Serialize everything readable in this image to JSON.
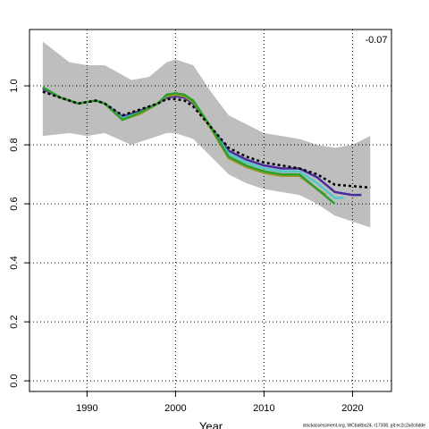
{
  "chart_data": {
    "type": "line",
    "annotation": "-0.07",
    "x_label": "Year",
    "footer": "stockassessment.org, WCbaltbs24, r17308, git:ec2c2a0c6dde",
    "xlim": [
      1983.5,
      2024.4
    ],
    "ylim": [
      -0.036,
      1.191
    ],
    "xticks": [
      1990,
      2000,
      2010,
      2020
    ],
    "yticks": [
      {
        "value": 0,
        "label": "0.0"
      },
      {
        "value": 0.2,
        "label": "0.2"
      },
      {
        "value": 0.4,
        "label": "0.4"
      },
      {
        "value": 0.6,
        "label": "0.6"
      },
      {
        "value": 0.8,
        "label": "0.8"
      },
      {
        "value": 1,
        "label": "1.0"
      }
    ],
    "grid": true,
    "band": {
      "color": "#bebebe",
      "x": [
        1985,
        1988,
        1990,
        1992,
        1995,
        1997,
        1999,
        2000,
        2002,
        2004,
        2006,
        2008,
        2010,
        2012,
        2014,
        2016,
        2018,
        2020,
        2022
      ],
      "upper": [
        1.15,
        1.08,
        1.07,
        1.07,
        1.02,
        1.03,
        1.08,
        1.09,
        1.07,
        0.98,
        0.9,
        0.87,
        0.84,
        0.83,
        0.82,
        0.8,
        0.79,
        0.8,
        0.83
      ],
      "lower": [
        0.83,
        0.84,
        0.83,
        0.84,
        0.8,
        0.82,
        0.84,
        0.84,
        0.82,
        0.76,
        0.7,
        0.67,
        0.65,
        0.64,
        0.63,
        0.6,
        0.56,
        0.54,
        0.52
      ]
    },
    "series": [
      {
        "color": "#4b2a9e",
        "x": [
          1985,
          1987,
          1989,
          1991,
          1992,
          1994,
          1996,
          1998,
          1999,
          2000,
          2001,
          2002,
          2004,
          2006,
          2008,
          2010,
          2012,
          2014,
          2016,
          2018,
          2020,
          2021
        ],
        "values": [
          0.99,
          0.96,
          0.94,
          0.95,
          0.94,
          0.895,
          0.915,
          0.94,
          0.96,
          0.965,
          0.96,
          0.94,
          0.86,
          0.78,
          0.75,
          0.73,
          0.72,
          0.72,
          0.69,
          0.64,
          0.63,
          0.63
        ]
      },
      {
        "color": "#4ec9c9",
        "x": [
          1985,
          1987,
          1989,
          1991,
          1992,
          1994,
          1996,
          1998,
          1999,
          2000,
          2001,
          2002,
          2004,
          2006,
          2008,
          2010,
          2012,
          2014,
          2016,
          2018,
          2019
        ],
        "values": [
          0.995,
          0.96,
          0.94,
          0.95,
          0.94,
          0.89,
          0.91,
          0.94,
          0.965,
          0.97,
          0.965,
          0.945,
          0.86,
          0.77,
          0.74,
          0.72,
          0.71,
          0.71,
          0.67,
          0.62,
          0.62
        ]
      },
      {
        "color": "#9a9a20",
        "x": [
          1985,
          1987,
          1989,
          1991,
          1992,
          1994,
          1996,
          1998,
          1999,
          2000,
          2001,
          2002,
          2004,
          2006,
          2008,
          2010,
          2012,
          2014,
          2016,
          2017
        ],
        "values": [
          0.995,
          0.96,
          0.94,
          0.95,
          0.94,
          0.885,
          0.905,
          0.94,
          0.965,
          0.97,
          0.965,
          0.945,
          0.855,
          0.755,
          0.725,
          0.705,
          0.695,
          0.695,
          0.65,
          0.63
        ]
      },
      {
        "color": "#2e9e2e",
        "x": [
          1985,
          1987,
          1989,
          1991,
          1992,
          1994,
          1996,
          1998,
          1999,
          2000,
          2001,
          2002,
          2004,
          2006,
          2008,
          2010,
          2012,
          2014,
          2016,
          2018
        ],
        "values": [
          0.995,
          0.96,
          0.94,
          0.95,
          0.94,
          0.885,
          0.91,
          0.94,
          0.97,
          0.975,
          0.97,
          0.95,
          0.86,
          0.76,
          0.73,
          0.71,
          0.7,
          0.7,
          0.65,
          0.6
        ]
      },
      {
        "color": "#000000",
        "dashed": true,
        "x": [
          1985,
          1987,
          1989,
          1991,
          1992,
          1994,
          1996,
          1998,
          1999,
          2000,
          2001,
          2002,
          2004,
          2006,
          2008,
          2010,
          2012,
          2014,
          2016,
          2018,
          2020,
          2022
        ],
        "values": [
          0.98,
          0.96,
          0.94,
          0.95,
          0.94,
          0.9,
          0.92,
          0.94,
          0.955,
          0.955,
          0.95,
          0.93,
          0.86,
          0.79,
          0.76,
          0.74,
          0.73,
          0.72,
          0.7,
          0.665,
          0.66,
          0.655
        ]
      }
    ]
  }
}
